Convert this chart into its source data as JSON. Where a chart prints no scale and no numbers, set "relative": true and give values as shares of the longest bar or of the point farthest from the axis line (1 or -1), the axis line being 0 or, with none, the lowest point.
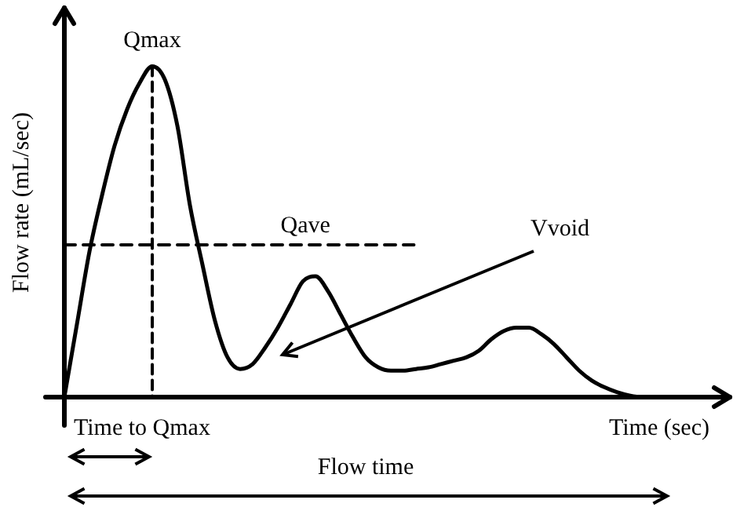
{
  "chart_data": {
    "type": "line",
    "relative": true,
    "xlabel": "Time (sec)",
    "ylabel": "Flow rate (mL/sec)",
    "color": "#000000",
    "line_style": "solid",
    "marker": "none",
    "legend": false,
    "categories": [
      null,
      null,
      null,
      null,
      null,
      null,
      null,
      null,
      null,
      null,
      null,
      null,
      null,
      null,
      null,
      null,
      null,
      null,
      null,
      null,
      null,
      null,
      null,
      null,
      null,
      null,
      null,
      null,
      null,
      null,
      null,
      null,
      null,
      null,
      null,
      null,
      null,
      null,
      null,
      null,
      null,
      null,
      null,
      null,
      null,
      null,
      null,
      null,
      null
    ],
    "values": [
      0,
      0.22,
      0.44,
      0.61,
      0.76,
      0.87,
      0.95,
      1,
      0.96,
      0.82,
      0.58,
      0.4,
      0.23,
      0.12,
      0.085,
      0.1,
      0.15,
      0.21,
      0.28,
      0.35,
      0.365,
      0.32,
      0.25,
      0.18,
      0.12,
      0.09,
      0.08,
      0.08,
      0.085,
      0.09,
      0.1,
      0.11,
      0.12,
      0.14,
      0.175,
      0.2,
      0.21,
      0.21,
      0.19,
      0.16,
      0.12,
      0.08,
      0.05,
      0.03,
      0.015,
      0.005,
      0,
      0,
      0
    ],
    "ref_lines": [
      {
        "axis": "y",
        "value": 0.46,
        "label": "Qave",
        "line_style": "dashed"
      }
    ],
    "annotations": [
      {
        "text": "Qmax",
        "y": 1
      },
      "Vvoid",
      "Time to Qmax",
      "Flow time"
    ]
  }
}
